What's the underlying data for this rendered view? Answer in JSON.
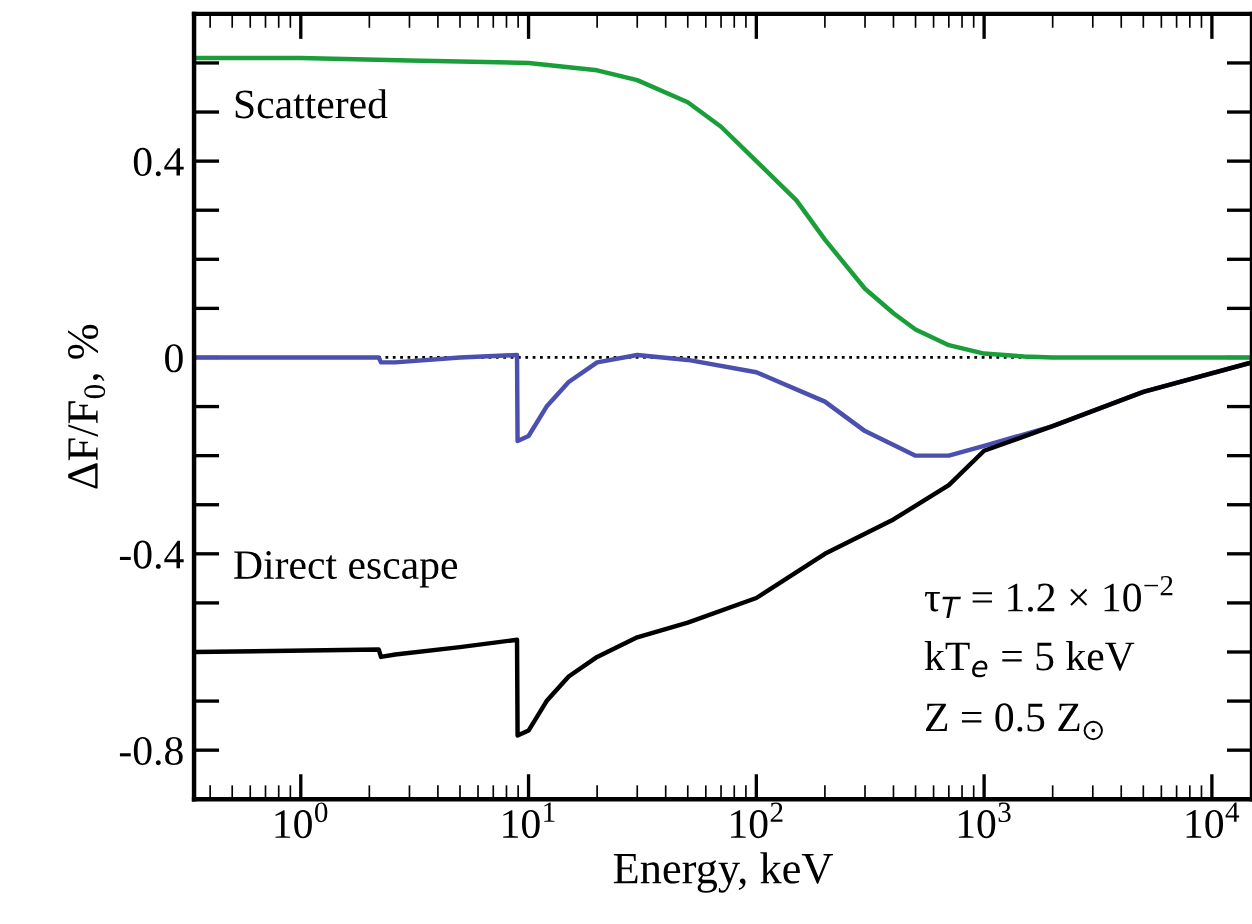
{
  "chart_data": {
    "type": "line",
    "xlabel": "Energy, keV",
    "ylabel": "ΔF/F$_{0}$, %",
    "log": "x",
    "xlim": [
      0.34,
      15000
    ],
    "ylim": [
      -0.9,
      0.7
    ],
    "xticks": [
      {
        "value": 1,
        "label": "10$^{0}$"
      },
      {
        "value": 10,
        "label": "10$^{1}$"
      },
      {
        "value": 100,
        "label": "10$^{2}$"
      },
      {
        "value": 1000,
        "label": "10$^{3}$"
      },
      {
        "value": 10000,
        "label": "10$^{4}$"
      }
    ],
    "yticks": [
      {
        "value": -0.9,
        "label": null
      },
      -0.8,
      {
        "value": -0.7,
        "label": null
      },
      {
        "value": -0.6,
        "label": null
      },
      {
        "value": -0.5,
        "label": null
      },
      -0.4,
      {
        "value": -0.3,
        "label": null
      },
      {
        "value": -0.2,
        "label": null
      },
      {
        "value": -0.1,
        "label": null
      },
      0,
      {
        "value": 0.1,
        "label": null
      },
      {
        "value": 0.2,
        "label": null
      },
      {
        "value": 0.3,
        "label": null
      },
      0.4,
      {
        "value": 0.5,
        "label": null
      },
      {
        "value": 0.6,
        "label": null
      },
      {
        "value": 0.7,
        "label": null
      }
    ],
    "grid": false,
    "legend": false,
    "marker": "none",
    "line_style": "solid",
    "ref_lines": [
      {
        "axis": "y",
        "value": 0,
        "color": "#000000",
        "line_style": "dotted"
      }
    ],
    "annotations": [
      "τ$_{T}$ = 1.2 × 10$^{−2}$",
      "kT$_{e}$ = 5 keV",
      "Z = 0.5 Z$_{⊙}$"
    ],
    "series": [
      {
        "name": "Scattered",
        "color": "#1a9e3a",
        "x": [
          0.34,
          1,
          3,
          10,
          20,
          30,
          50,
          70,
          100,
          150,
          200,
          300,
          400,
          500,
          700,
          1000,
          1500,
          2000,
          15000
        ],
        "values": [
          0.61,
          0.61,
          0.605,
          0.6,
          0.585,
          0.565,
          0.52,
          0.47,
          0.4,
          0.32,
          0.24,
          0.14,
          0.09,
          0.057,
          0.025,
          0.008,
          0.002,
          0,
          0
        ]
      },
      {
        "color": "#4a4fb0",
        "x": [
          0.34,
          2.2,
          2.25,
          2.6,
          5,
          8.9,
          8.95,
          10,
          12,
          15,
          20,
          30,
          50,
          100,
          200,
          300,
          500,
          700,
          1000,
          2000,
          5000,
          15000
        ],
        "values": [
          0,
          0,
          -0.01,
          -0.01,
          0,
          0.005,
          -0.17,
          -0.16,
          -0.1,
          -0.05,
          -0.01,
          0.005,
          -0.005,
          -0.03,
          -0.09,
          -0.15,
          -0.2,
          -0.2,
          -0.18,
          -0.14,
          -0.07,
          -0.01
        ]
      },
      {
        "name": "Direct escape",
        "color": "#000000",
        "x": [
          0.34,
          2.2,
          2.25,
          2.6,
          5,
          8.9,
          8.95,
          10,
          12,
          15,
          20,
          30,
          50,
          100,
          200,
          400,
          700,
          1000,
          2000,
          5000,
          15000
        ],
        "values": [
          -0.6,
          -0.595,
          -0.61,
          -0.605,
          -0.59,
          -0.575,
          -0.77,
          -0.76,
          -0.7,
          -0.65,
          -0.61,
          -0.57,
          -0.54,
          -0.49,
          -0.4,
          -0.33,
          -0.26,
          -0.19,
          -0.14,
          -0.07,
          -0.01
        ]
      }
    ]
  }
}
